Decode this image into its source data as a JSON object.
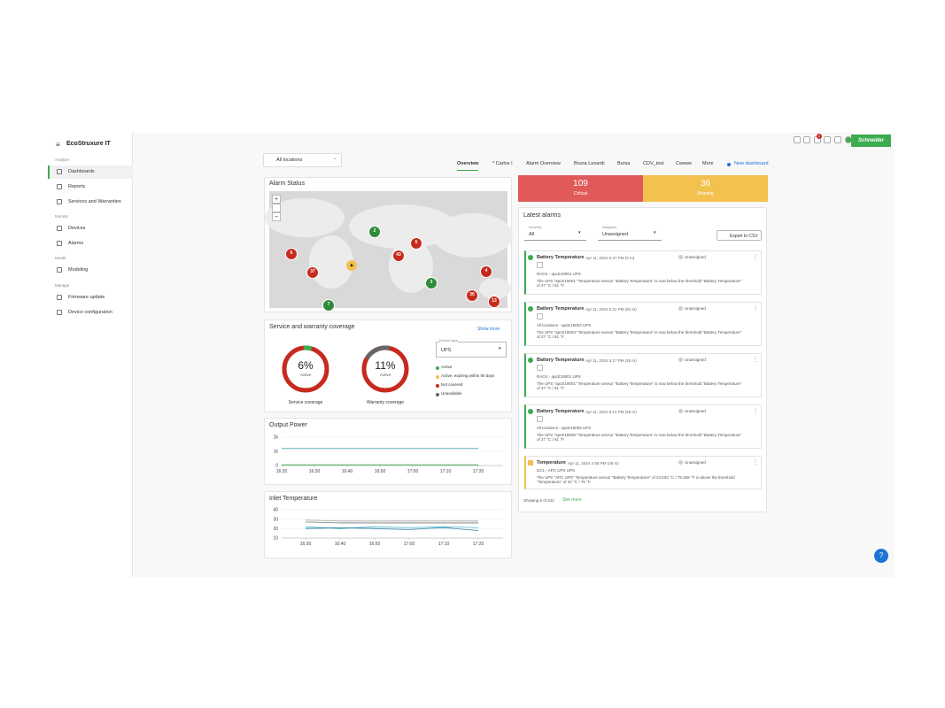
{
  "header": {
    "brand": "EcoStruxure IT",
    "notification_count": "2",
    "vendor": "Schneider"
  },
  "sidebar": [
    {
      "title": "Analyze",
      "items": [
        "Dashboards",
        "Reports",
        "Services and Warranties"
      ]
    },
    {
      "title": "Monitor",
      "items": [
        "Devices",
        "Alarms"
      ]
    },
    {
      "title": "Model",
      "items": [
        "Modeling"
      ]
    },
    {
      "title": "Manage",
      "items": [
        "Firmware update",
        "Device configuration"
      ]
    }
  ],
  "location_filter": "All locations",
  "tabs": [
    "Overview",
    "* Carlos I",
    "Alarm Overview",
    "Bruna Lunardi",
    "Bursa",
    "CDV_test",
    "Cwewe",
    "More"
  ],
  "new_dashboard": "New dashboard",
  "alarm_status": {
    "title": "Alarm Status",
    "zoom_in": "+",
    "zoom_out": "−",
    "clusters": [
      {
        "count": 2,
        "color": "#2e8b3a"
      },
      {
        "count": 6,
        "color": "#c62a1e"
      },
      {
        "count": 43,
        "color": "#c62a1e"
      },
      {
        "count": 5,
        "color": "#c62a1e"
      },
      {
        "count": 37,
        "color": "#c62a1e"
      },
      {
        "count": 4,
        "color": "#c62a1e"
      },
      {
        "count": 3,
        "color": "#2e8b3a"
      },
      {
        "count": 30,
        "color": "#c62a1e"
      },
      {
        "count": 13,
        "color": "#c62a1e"
      },
      {
        "count": 7,
        "color": "#2e8b3a"
      }
    ]
  },
  "counts": [
    {
      "value": 109,
      "label": "Critical",
      "color": "#e05a5a"
    },
    {
      "value": 36,
      "label": "Warning",
      "color": "#f2c14e"
    }
  ],
  "coverage": {
    "title": "Service and warranty coverage",
    "show_more": "Show more",
    "gauges": [
      {
        "percent": "6%",
        "status": "Active",
        "label": "Service coverage"
      },
      {
        "percent": "11%",
        "status": "Active",
        "label": "Warranty coverage"
      }
    ],
    "device_type_label": "Device type",
    "device_type": "UPS",
    "legend": [
      {
        "text": "Active",
        "color": "#3dab4f"
      },
      {
        "text": "Active, expiring within 90 days",
        "color": "#f2c14e"
      },
      {
        "text": "Not covered",
        "color": "#c62a1e"
      },
      {
        "text": "Unavailable",
        "color": "#666666"
      }
    ]
  },
  "chart_data": [
    {
      "type": "line",
      "title": "Output Power",
      "categories": [
        "16:20",
        "16:30",
        "16:40",
        "16:50",
        "17:00",
        "17:10",
        "17:20"
      ],
      "ylim": [
        0,
        2000
      ],
      "yticks": [
        0,
        {
          "value": 1000,
          "label": "1k"
        },
        {
          "value": 2000,
          "label": "2k"
        }
      ],
      "grid": true,
      "series": [
        {
          "color": "#4a9fb5",
          "values": [
            1200,
            1200,
            1200,
            1200,
            1200,
            1200,
            1200
          ]
        },
        {
          "color": "#3dab4f",
          "values": [
            50,
            50,
            50,
            50,
            50,
            50,
            50
          ]
        }
      ]
    },
    {
      "type": "line",
      "title": "Inlet Temperature",
      "categories": [
        "16:30",
        "16:40",
        "16:50",
        "17:00",
        "17:10",
        "17:20"
      ],
      "ylim": [
        10,
        40
      ],
      "yticks": [
        10,
        20,
        30,
        40
      ],
      "grid": true,
      "series": [
        {
          "color": "#999999",
          "values": [
            29,
            28,
            28,
            28,
            28,
            28
          ]
        },
        {
          "color": "#777777",
          "values": [
            27,
            26,
            26,
            26,
            26,
            26
          ]
        },
        {
          "color": "#4ab0c8",
          "values": [
            22,
            20,
            22,
            21,
            22,
            21
          ]
        },
        {
          "color": "#2a7fa8",
          "values": [
            20,
            21,
            20,
            19,
            21,
            18
          ]
        }
      ]
    }
  ],
  "latest_alarms": {
    "title": "Latest alarms",
    "severity": {
      "label": "Severity",
      "value": "All"
    },
    "assignee": {
      "label": "Assignee",
      "value": "Unassigned"
    },
    "export": "Export to CSV",
    "items": [
      {
        "severity": "ok",
        "title": "Battery Temperature",
        "time": "Apr 11, 2024 5:27 PM (0 m)",
        "status": "Unassigned",
        "location": "RACK - apcE19001 UPS",
        "message": "The UPS \"apcE19001\" Temperature sensor \"Battery Temperature\" is now below the threshold \"Battery Temperature\" of 27 °C / 81 °F."
      },
      {
        "severity": "ok",
        "title": "Battery Temperature",
        "time": "Apr 11, 2024 5:21 PM (81 m)",
        "status": "Unassigned",
        "location": "All locations - apcE19004 UPS",
        "message": "The UPS \"apcE19004\" Temperature sensor \"Battery Temperature\" is now below the threshold \"Battery Temperature\" of 27 °C / 81 °F."
      },
      {
        "severity": "ok",
        "title": "Battery Temperature",
        "time": "Apr 11, 2024 5:17 PM (25 m)",
        "status": "Unassigned",
        "location": "RACK - apcE19001 UPS",
        "message": "The UPS \"apcE19001\" Temperature sensor \"Battery Temperature\" is now below the threshold \"Battery Temperature\" of 27 °C / 81 °F."
      },
      {
        "severity": "ok",
        "title": "Battery Temperature",
        "time": "Apr 11, 2024 5:14 PM (25 m)",
        "status": "Unassigned",
        "location": "All locations - apcE19005 UPS",
        "message": "The UPS \"apcE19005\" Temperature sensor \"Battery Temperature\" is now below the threshold \"Battery Temperature\" of 27 °C / 81 °F."
      },
      {
        "severity": "warning",
        "title": "Temperature",
        "time": "Apr 11, 2024 4:58 PM (28 m)",
        "status": "Unassigned",
        "location": "DC1 - APC UPS UPS",
        "message": "The UPS \"APC UPS\" Temperature sensor \"Battery Temperature\" of 24.033 °C / 75.258 °F is above the threshold \"Temperature\" of 24 °C / 75 °F."
      }
    ],
    "showing": "Showing 5 of 242",
    "see_more": "See more"
  }
}
